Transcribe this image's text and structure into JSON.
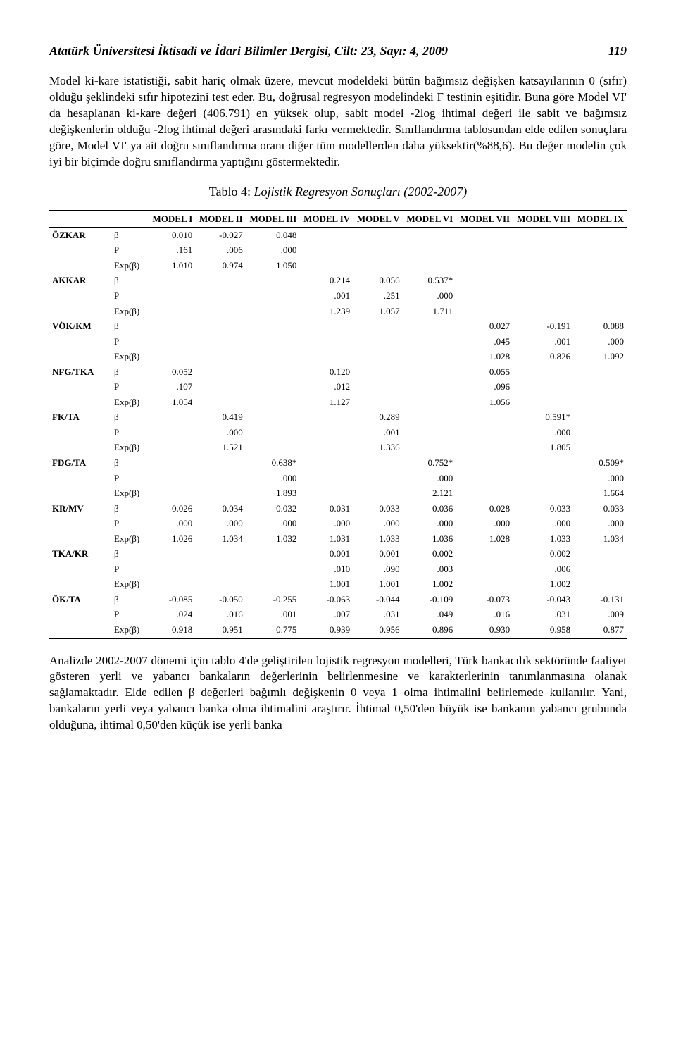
{
  "header": {
    "journal": "Atatürk Üniversitesi İktisadi ve İdari Bilimler Dergisi, Cilt: 23,  Sayı: 4, 2009",
    "page": "119"
  },
  "paragraphs": {
    "p1": "Model ki-kare istatistiği, sabit hariç olmak üzere, mevcut modeldeki bütün bağımsız değişken katsayılarının 0 (sıfır) olduğu şeklindeki sıfır hipotezini test eder. Bu, doğrusal regresyon modelindeki F testinin eşitidir. Buna göre Model VI' da hesaplanan ki-kare değeri (406.791) en yüksek olup, sabit model -2log ihtimal değeri ile sabit ve bağımsız değişkenlerin olduğu -2log ihtimal değeri arasındaki farkı vermektedir. Sınıflandırma tablosundan elde edilen sonuçlara göre, Model VI' ya ait doğru sınıflandırma oranı diğer tüm modellerden daha yüksektir(%88,6). Bu değer modelin çok iyi bir biçimde doğru sınıflandırma yaptığını göstermektedir.",
    "p2": "Analizde 2002-2007 dönemi için tablo 4'de geliştirilen lojistik regresyon modelleri, Türk bankacılık sektöründe faaliyet gösteren yerli ve yabancı bankaların değerlerinin belirlenmesine ve karakterlerinin tanımlanmasına olanak sağlamaktadır. Elde edilen β değerleri bağımlı değişkenin 0 veya 1 olma ihtimalini belirlemede kullanılır. Yani, bankaların yerli veya yabancı banka olma ihtimalini araştırır. İhtimal 0,50'den büyük ise bankanın yabancı grubunda olduğuna, ihtimal 0,50'den küçük ise yerli banka"
  },
  "table": {
    "caption_label": "Tablo 4: ",
    "caption_title": "Lojistik Regresyon Sonuçları (2002-2007)",
    "headers": [
      "",
      "",
      "MODEL I",
      "MODEL II",
      "MODEL III",
      "MODEL IV",
      "MODEL V",
      "MODEL VI",
      "MODEL VII",
      "MODEL VIII",
      "MODEL IX"
    ],
    "stats": [
      "β",
      "P",
      "Exp(β)"
    ],
    "vars": [
      {
        "name": "ÖZKAR",
        "rows": [
          [
            "0.010",
            "-0.027",
            "0.048",
            "",
            "",
            "",
            "",
            "",
            ""
          ],
          [
            ".161",
            ".006",
            ".000",
            "",
            "",
            "",
            "",
            "",
            ""
          ],
          [
            "1.010",
            "0.974",
            "1.050",
            "",
            "",
            "",
            "",
            "",
            ""
          ]
        ]
      },
      {
        "name": "AKKAR",
        "rows": [
          [
            "",
            "",
            "",
            "0.214",
            "0.056",
            "0.537*",
            "",
            "",
            ""
          ],
          [
            "",
            "",
            "",
            ".001",
            ".251",
            ".000",
            "",
            "",
            ""
          ],
          [
            "",
            "",
            "",
            "1.239",
            "1.057",
            "1.711",
            "",
            "",
            ""
          ]
        ]
      },
      {
        "name": "VÖK/KM",
        "rows": [
          [
            "",
            "",
            "",
            "",
            "",
            "",
            "0.027",
            "-0.191",
            "0.088"
          ],
          [
            "",
            "",
            "",
            "",
            "",
            "",
            ".045",
            ".001",
            ".000"
          ],
          [
            "",
            "",
            "",
            "",
            "",
            "",
            "1.028",
            "0.826",
            "1.092"
          ]
        ]
      },
      {
        "name": "NFG/TKA",
        "rows": [
          [
            "0.052",
            "",
            "",
            "0.120",
            "",
            "",
            "0.055",
            "",
            ""
          ],
          [
            ".107",
            "",
            "",
            ".012",
            "",
            "",
            ".096",
            "",
            ""
          ],
          [
            "1.054",
            "",
            "",
            "1.127",
            "",
            "",
            "1.056",
            "",
            ""
          ]
        ]
      },
      {
        "name": "FK/TA",
        "rows": [
          [
            "",
            "0.419",
            "",
            "",
            "0.289",
            "",
            "",
            "0.591*",
            ""
          ],
          [
            "",
            ".000",
            "",
            "",
            ".001",
            "",
            "",
            ".000",
            ""
          ],
          [
            "",
            "1.521",
            "",
            "",
            "1.336",
            "",
            "",
            "1.805",
            ""
          ]
        ]
      },
      {
        "name": "FDG/TA",
        "rows": [
          [
            "",
            "",
            "0.638*",
            "",
            "",
            "0.752*",
            "",
            "",
            "0.509*"
          ],
          [
            "",
            "",
            ".000",
            "",
            "",
            ".000",
            "",
            "",
            ".000"
          ],
          [
            "",
            "",
            "1.893",
            "",
            "",
            "2.121",
            "",
            "",
            "1.664"
          ]
        ]
      },
      {
        "name": "KR/MV",
        "rows": [
          [
            "0.026",
            "0.034",
            "0.032",
            "0.031",
            "0.033",
            "0.036",
            "0.028",
            "0.033",
            "0.033"
          ],
          [
            ".000",
            ".000",
            ".000",
            ".000",
            ".000",
            ".000",
            ".000",
            ".000",
            ".000"
          ],
          [
            "1.026",
            "1.034",
            "1.032",
            "1.031",
            "1.033",
            "1.036",
            "1.028",
            "1.033",
            "1.034"
          ]
        ]
      },
      {
        "name": "TKA/KR",
        "rows": [
          [
            "",
            "",
            "",
            "0.001",
            "0.001",
            "0.002",
            "",
            "0.002",
            ""
          ],
          [
            "",
            "",
            "",
            ".010",
            ".090",
            ".003",
            "",
            ".006",
            ""
          ],
          [
            "",
            "",
            "",
            "1.001",
            "1.001",
            "1.002",
            "",
            "1.002",
            ""
          ]
        ]
      },
      {
        "name": "ÖK/TA",
        "rows": [
          [
            "-0.085",
            "-0.050",
            "-0.255",
            "-0.063",
            "-0.044",
            "-0.109",
            "-0.073",
            "-0.043",
            "-0.131"
          ],
          [
            ".024",
            ".016",
            ".001",
            ".007",
            ".031",
            ".049",
            ".016",
            ".031",
            ".009"
          ],
          [
            "0.918",
            "0.951",
            "0.775",
            "0.939",
            "0.956",
            "0.896",
            "0.930",
            "0.958",
            "0.877"
          ]
        ]
      }
    ]
  }
}
